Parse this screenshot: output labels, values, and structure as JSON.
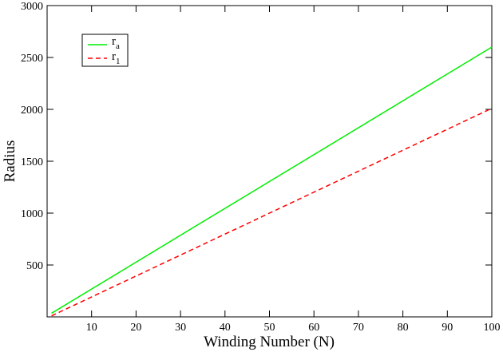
{
  "chart_data": {
    "type": "line",
    "title": "",
    "xlabel": "Winding Number (N)",
    "ylabel": "Radius",
    "xlim": [
      0,
      100
    ],
    "ylim": [
      0,
      3000
    ],
    "xticks": [
      10,
      20,
      30,
      40,
      50,
      60,
      70,
      80,
      90,
      100
    ],
    "yticks": [
      500,
      1000,
      1500,
      2000,
      2500,
      3000
    ],
    "grid": false,
    "legend_position": "top-left",
    "series": [
      {
        "name": "ra",
        "name_main": "r",
        "name_sub": "a",
        "color": "#00ee00",
        "dash": "solid",
        "x": [
          1,
          100
        ],
        "y": [
          35,
          2600
        ]
      },
      {
        "name": "r1",
        "name_main": "r",
        "name_sub": "1",
        "color": "#ff0000",
        "dash": "dashed",
        "x": [
          1,
          100
        ],
        "y": [
          10,
          2010
        ]
      }
    ]
  }
}
